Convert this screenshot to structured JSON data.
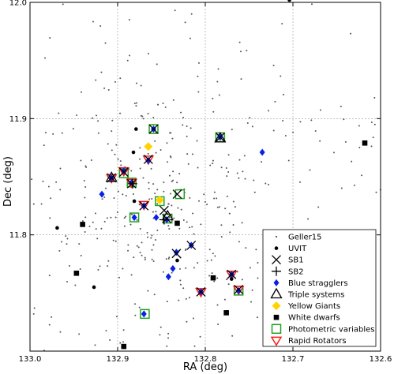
{
  "chart_data": {
    "type": "scatter",
    "xlabel": "RA (deg)",
    "ylabel": "Dec (deg)",
    "xlim": [
      133.0,
      132.6
    ],
    "ylim": [
      11.7,
      12.0
    ],
    "x_ticks": [
      "133.0",
      "132.9",
      "132.8",
      "132.7",
      "132.6"
    ],
    "y_ticks": [
      "11.8",
      "11.9",
      "12.0"
    ],
    "x_tick_values": [
      133.0,
      132.9,
      132.8,
      132.7,
      132.6
    ],
    "y_tick_values": [
      11.8,
      11.9,
      12.0
    ],
    "grid": true,
    "legend_position": "bottom-right",
    "legend": [
      {
        "key": "geller",
        "label": "Geller15"
      },
      {
        "key": "uvit",
        "label": "UVIT"
      },
      {
        "key": "sb1",
        "label": "SB1"
      },
      {
        "key": "sb2",
        "label": "SB2"
      },
      {
        "key": "bss",
        "label": "Blue stragglers"
      },
      {
        "key": "triple",
        "label": "Triple systems"
      },
      {
        "key": "yg",
        "label": "Yellow Giants"
      },
      {
        "key": "wd",
        "label": "White dwarfs"
      },
      {
        "key": "phot",
        "label": "Photometric variables"
      },
      {
        "key": "rr",
        "label": "Rapid Rotators"
      }
    ],
    "colors": {
      "geller": "#555555",
      "uvit": "#000000",
      "bss": "#0a1fe8",
      "yg": "#ffd200",
      "wd": "#000000",
      "phot": "#22a022",
      "rr": "#ff1a1a"
    },
    "series": {
      "uvit": [
        [
          132.704,
          12.002
        ],
        [
          132.879,
          11.891
        ],
        [
          132.969,
          11.806
        ],
        [
          132.927,
          11.755
        ],
        [
          132.832,
          11.778
        ],
        [
          132.881,
          11.829
        ],
        [
          132.77,
          11.762
        ],
        [
          132.882,
          11.871
        ]
      ],
      "sb1": [
        [
          132.907,
          11.849
        ],
        [
          132.893,
          11.854
        ],
        [
          132.884,
          11.844
        ],
        [
          132.865,
          11.865
        ],
        [
          132.87,
          11.825
        ],
        [
          132.847,
          11.821
        ],
        [
          132.844,
          11.814
        ],
        [
          132.832,
          11.835
        ],
        [
          132.833,
          11.784
        ],
        [
          132.816,
          11.791
        ],
        [
          132.783,
          11.884
        ],
        [
          132.859,
          11.891
        ],
        [
          132.805,
          11.751
        ],
        [
          132.77,
          11.766
        ],
        [
          132.762,
          11.753
        ]
      ],
      "sb2": [
        [
          132.847,
          11.813
        ],
        [
          132.883,
          11.844
        ]
      ],
      "bss": [
        [
          132.859,
          11.891
        ],
        [
          132.865,
          11.864
        ],
        [
          132.907,
          11.849
        ],
        [
          132.893,
          11.855
        ],
        [
          132.884,
          11.845
        ],
        [
          132.918,
          11.835
        ],
        [
          132.87,
          11.825
        ],
        [
          132.881,
          11.815
        ],
        [
          132.856,
          11.815
        ],
        [
          132.844,
          11.813
        ],
        [
          132.833,
          11.785
        ],
        [
          132.816,
          11.791
        ],
        [
          132.837,
          11.771
        ],
        [
          132.842,
          11.764
        ],
        [
          132.87,
          11.732
        ],
        [
          132.805,
          11.751
        ],
        [
          132.77,
          11.766
        ],
        [
          132.762,
          11.752
        ],
        [
          132.783,
          11.884
        ],
        [
          132.735,
          11.871
        ]
      ],
      "triple": [
        [
          132.907,
          11.849
        ],
        [
          132.783,
          11.883
        ],
        [
          132.843,
          11.816
        ]
      ],
      "yg": [
        [
          132.865,
          11.876
        ],
        [
          132.852,
          11.83
        ]
      ],
      "wd": [
        [
          132.618,
          11.879
        ],
        [
          132.94,
          11.809
        ],
        [
          132.832,
          11.81
        ],
        [
          132.947,
          11.767
        ],
        [
          132.791,
          11.763
        ],
        [
          132.776,
          11.733
        ],
        [
          132.893,
          11.704
        ]
      ],
      "phot": [
        [
          132.859,
          11.891
        ],
        [
          132.893,
          11.853
        ],
        [
          132.884,
          11.845
        ],
        [
          132.852,
          11.829
        ],
        [
          132.829,
          11.835
        ],
        [
          132.881,
          11.815
        ],
        [
          132.843,
          11.814
        ],
        [
          132.783,
          11.884
        ],
        [
          132.869,
          11.732
        ],
        [
          132.762,
          11.752
        ]
      ],
      "rr": [
        [
          132.907,
          11.849
        ],
        [
          132.893,
          11.855
        ],
        [
          132.884,
          11.845
        ],
        [
          132.865,
          11.865
        ],
        [
          132.87,
          11.826
        ],
        [
          132.805,
          11.751
        ],
        [
          132.77,
          11.766
        ],
        [
          132.762,
          11.753
        ]
      ]
    }
  }
}
